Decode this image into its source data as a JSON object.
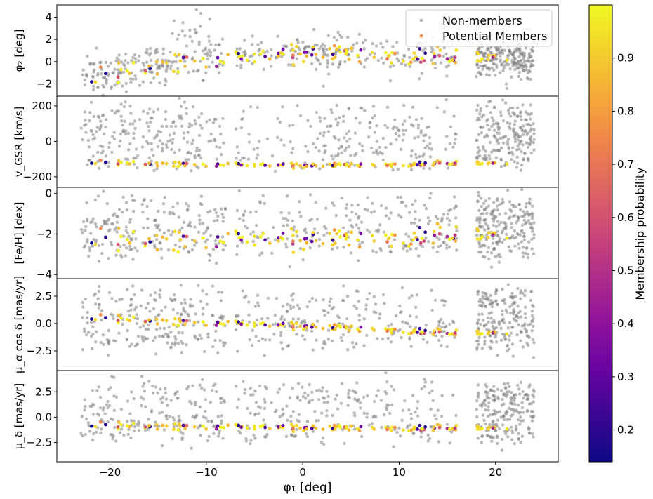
{
  "chart_data": {
    "type": "scatter",
    "xlabel": "φ₁ [deg]",
    "x_ticks": [
      "−20",
      "−10",
      "0",
      "10",
      "20"
    ],
    "xlim": [
      -25.5,
      26.5
    ],
    "legend": {
      "position": "top-right",
      "entries": [
        "Non-members",
        "Potential Members"
      ]
    },
    "series_colors": {
      "non_members": "#808080",
      "potential_members": "#f5884a"
    },
    "panels": [
      {
        "id": "phi2",
        "ylabel": "φ₂ [deg]",
        "ylim": [
          -3.1,
          5.1
        ],
        "y_ticks": [
          {
            "v": 4,
            "label": "4"
          },
          {
            "v": 2,
            "label": "2"
          },
          {
            "v": 0,
            "label": "0"
          },
          {
            "v": -2,
            "label": "−2"
          }
        ],
        "member_track": [
          [
            -22,
            -1.6
          ],
          [
            -18,
            -0.8
          ],
          [
            -12,
            0.2
          ],
          [
            -8,
            0.2
          ],
          [
            -5,
            0.5
          ],
          [
            0,
            0.9
          ],
          [
            5,
            0.8
          ],
          [
            10,
            0.6
          ],
          [
            15,
            0.3
          ]
        ],
        "member_scatter": 0.4
      },
      {
        "id": "vgsr",
        "ylabel": "v_GSR [km/s]",
        "ylim": [
          -260,
          255
        ],
        "y_ticks": [
          {
            "v": 200,
            "label": "200"
          },
          {
            "v": 0,
            "label": "0"
          },
          {
            "v": -200,
            "label": "−200"
          }
        ],
        "member_track": [
          [
            -22,
            -120
          ],
          [
            -10,
            -130
          ],
          [
            0,
            -135
          ],
          [
            10,
            -130
          ],
          [
            15,
            -125
          ]
        ],
        "member_scatter": 6
      },
      {
        "id": "feh",
        "ylabel": "[Fe/H] [dex]",
        "ylim": [
          -4.2,
          0.3
        ],
        "y_ticks": [
          {
            "v": 0,
            "label": "0"
          },
          {
            "v": -2,
            "label": "−2"
          },
          {
            "v": -4,
            "label": "−4"
          }
        ],
        "member_track": [
          [
            -22,
            -2.3
          ],
          [
            0,
            -2.2
          ],
          [
            15,
            -2.1
          ]
        ],
        "member_scatter": 0.25
      },
      {
        "id": "pmra",
        "ylabel": "μ_α cos δ [mas/yr]",
        "ylim": [
          -4.3,
          4.1
        ],
        "y_ticks": [
          {
            "v": 2.5,
            "label": "2.5"
          },
          {
            "v": 0.0,
            "label": "0.0"
          },
          {
            "v": -2.5,
            "label": "−2.5"
          }
        ],
        "member_track": [
          [
            -22,
            0.5
          ],
          [
            -10,
            0.1
          ],
          [
            0,
            -0.2
          ],
          [
            10,
            -0.6
          ],
          [
            15,
            -0.9
          ]
        ],
        "member_scatter": 0.15
      },
      {
        "id": "pmdec",
        "ylabel": "μ_δ [mas/yr]",
        "ylim": [
          -4.4,
          4.6
        ],
        "y_ticks": [
          {
            "v": 2.5,
            "label": "2.5"
          },
          {
            "v": 0.0,
            "label": "0.0"
          },
          {
            "v": -2.5,
            "label": "−2.5"
          }
        ],
        "member_track": [
          [
            -22,
            -0.8
          ],
          [
            0,
            -1.0
          ],
          [
            15,
            -1.1
          ]
        ],
        "member_scatter": 0.15
      }
    ],
    "members_x_range": [
      -22,
      22
    ],
    "nonmember_field_x_ranges": [
      [
        -23,
        -8
      ],
      [
        -7,
        16
      ],
      [
        18,
        24
      ]
    ],
    "colorbar": {
      "label": "Membership probability",
      "range": [
        0.14,
        1.0
      ],
      "ticks": [
        "0.2",
        "0.3",
        "0.4",
        "0.5",
        "0.6",
        "0.7",
        "0.8",
        "0.9"
      ],
      "tick_values": [
        0.2,
        0.3,
        0.4,
        0.5,
        0.6,
        0.7,
        0.8,
        0.9
      ],
      "colormap": "plasma"
    }
  }
}
